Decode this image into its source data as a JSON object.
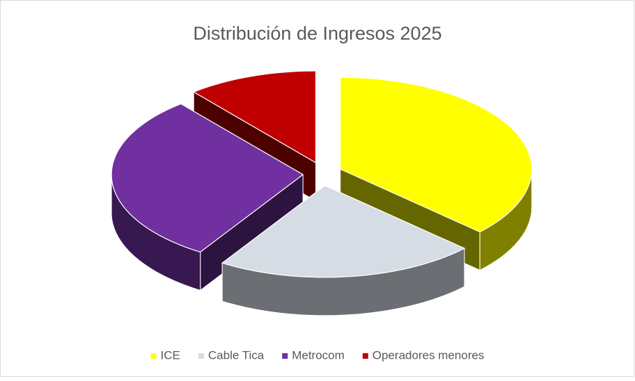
{
  "chart_data": {
    "type": "pie3d",
    "title": "Distribución de Ingresos 2025",
    "categories": [
      "ICE",
      "Cable Tica",
      "Metrocom",
      "Operadores menores"
    ],
    "values": [
      37,
      22,
      30,
      11
    ],
    "colors": [
      "#ffff00",
      "#d6dce4",
      "#7030a0",
      "#c00000"
    ],
    "legend": "bottom"
  }
}
